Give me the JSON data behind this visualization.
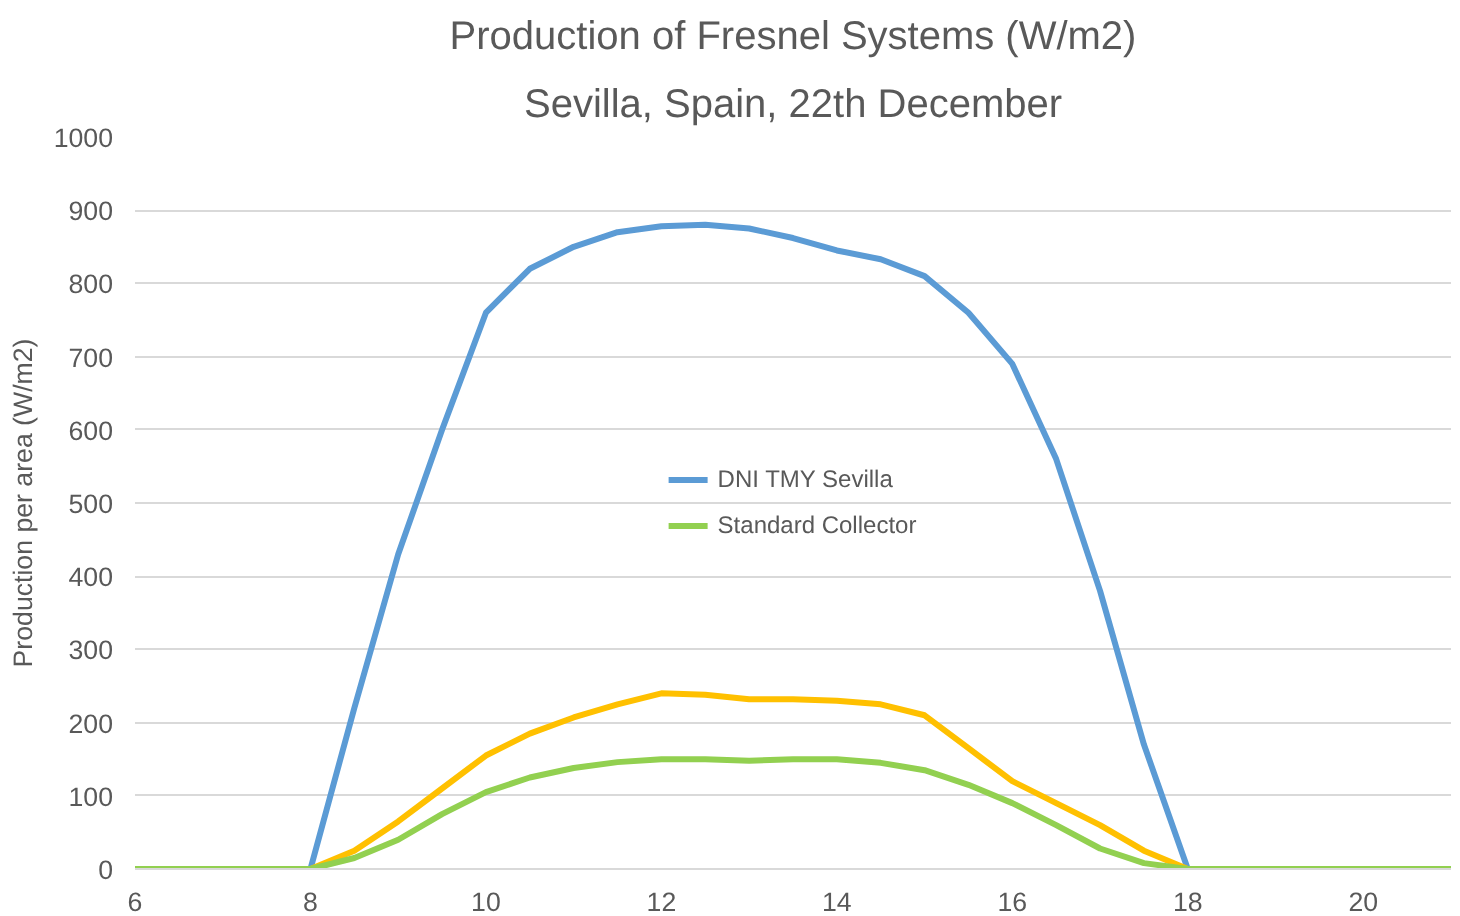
{
  "chart_data": {
    "type": "line",
    "title": "Production of Fresnel Systems (W/m2)",
    "subtitle": "Sevilla, Spain, 22th December",
    "ylabel": "Production per area (W/m2)",
    "series": [
      {
        "name": "DNI TMY Sevilla",
        "color": "#5b9bd5",
        "x": [
          6,
          8,
          8.5,
          9,
          9.5,
          10,
          10.5,
          11,
          11.5,
          12,
          12.5,
          13,
          13.5,
          14,
          14.5,
          15,
          15.5,
          16,
          16.5,
          17,
          17.5,
          18
        ],
        "values": [
          0,
          0,
          220,
          430,
          600,
          760,
          820,
          850,
          870,
          878,
          880,
          875,
          862,
          845,
          833,
          810,
          760,
          690,
          560,
          380,
          170,
          0
        ]
      },
      {
        "color": "#ffc000",
        "x": [
          6,
          8,
          8.5,
          9,
          9.5,
          10,
          10.5,
          11,
          11.5,
          12,
          12.5,
          13,
          13.5,
          14,
          14.5,
          15,
          15.5,
          16,
          16.5,
          17,
          17.5,
          18
        ],
        "values": [
          0,
          0,
          25,
          65,
          110,
          155,
          185,
          207,
          225,
          240,
          238,
          232,
          232,
          230,
          225,
          210,
          165,
          120,
          90,
          60,
          25,
          0
        ]
      },
      {
        "name": "Standard Collector",
        "color": "#92d050",
        "x": [
          6,
          8,
          8.5,
          9,
          9.5,
          10,
          10.5,
          11,
          11.5,
          12,
          12.5,
          13,
          13.5,
          14,
          14.5,
          15,
          15.5,
          16,
          16.5,
          17,
          17.5,
          18,
          21
        ],
        "values": [
          0,
          0,
          15,
          40,
          75,
          105,
          125,
          138,
          146,
          150,
          150,
          148,
          150,
          150,
          145,
          135,
          115,
          90,
          60,
          28,
          8,
          0,
          0
        ]
      }
    ],
    "xlim": [
      6,
      21
    ],
    "xticks": [
      6,
      8,
      10,
      12,
      14,
      16,
      18,
      20
    ],
    "ylim": [
      0,
      1000
    ],
    "yticks": [
      0,
      100,
      200,
      300,
      400,
      500,
      600,
      700,
      800,
      900,
      1000
    ],
    "grid": "y",
    "legend": "center",
    "line_style": "solid"
  }
}
